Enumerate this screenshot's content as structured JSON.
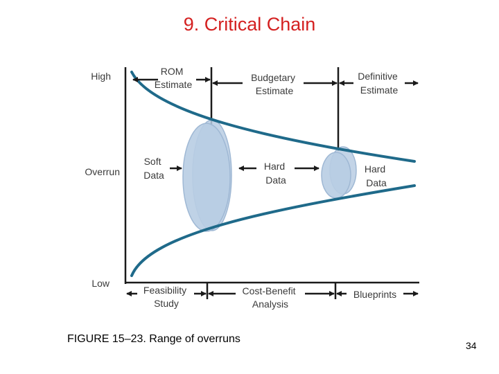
{
  "slide": {
    "title": "9. Critical Chain",
    "caption": "FIGURE 15–23. Range of overruns",
    "page_number": "34"
  },
  "diagram": {
    "y_levels": {
      "high": "High",
      "overrun": "Overrun",
      "low": "Low"
    },
    "top_phases": {
      "rom": [
        "ROM",
        "Estimate"
      ],
      "budgetary": [
        "Budgetary",
        "Estimate"
      ],
      "definitive": [
        "Definitive",
        "Estimate"
      ]
    },
    "middle_labels": {
      "soft": [
        "Soft",
        "Data"
      ],
      "hard_mid": [
        "Hard",
        "Data"
      ],
      "hard_right": [
        "Hard",
        "Data"
      ]
    },
    "bottom_phases": {
      "feasibility": [
        "Feasibility",
        "Study"
      ],
      "cost_benefit": [
        "Cost-Benefit",
        "Analysis"
      ],
      "blueprints": [
        "Blueprints"
      ]
    },
    "colors": {
      "curve": "#1f6a8a",
      "ellipse_fill": "#b8cde3",
      "ellipse_stroke": "#9fb8d4",
      "axis": "#1a1a1a",
      "title": "#d42020"
    }
  }
}
